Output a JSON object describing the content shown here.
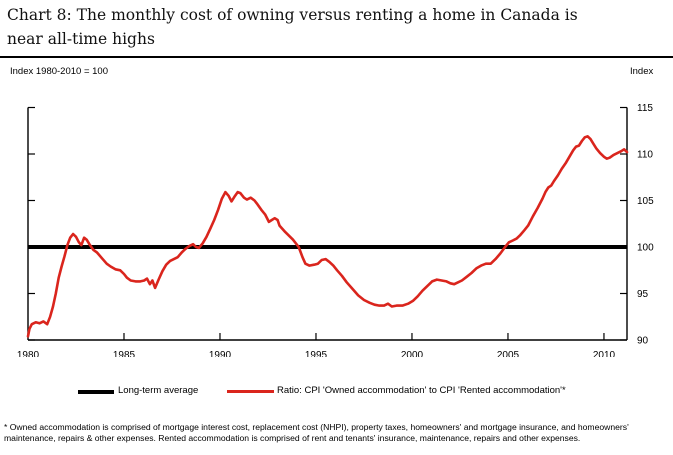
{
  "title_lines": [
    "Chart 8: The monthly cost of owning versus renting a home in Canada is",
    "near all-time highs"
  ],
  "axis_note_left": "Index 1980-2010 = 100",
  "axis_note_right": "Index",
  "legend": {
    "average_label": "Long-term average",
    "ratio_label": "Ratio: CPI 'Owned accommodation' to CPI 'Rented accommodation'*"
  },
  "footnote_lines": [
    "* Owned accommodation is comprised of mortgage interest cost, replacement cost (NHPI), property taxes, homeowners' and mortgage insurance, and homeowners'",
    "maintenance, repairs & other expenses.  Rented accommodation is comprised of rent and tenants' insurance, maintenance, repairs and other expenses."
  ],
  "colors": {
    "ratio_line": "#da251d",
    "average_line": "#000000",
    "axis": "#000000"
  },
  "chart_data": {
    "type": "line",
    "title": "Chart 8: The monthly cost of owning versus renting a home in Canada is near all-time highs",
    "xlabel": "",
    "ylabel": "Index",
    "index_note": "Index 1980-2010 = 100",
    "xlim": [
      1980,
      2011.2
    ],
    "ylim": [
      90,
      115
    ],
    "x_ticks": [
      1980,
      1985,
      1990,
      1995,
      2000,
      2005,
      2010
    ],
    "y_ticks": [
      90,
      95,
      100,
      105,
      110,
      115
    ],
    "grid": false,
    "legend_position": "bottom",
    "long_term_average": 100,
    "series": [
      {
        "name": "Long-term average",
        "color": "#000000",
        "style": "horizontal-line",
        "value": 100
      },
      {
        "name": "Ratio: CPI 'Owned accommodation' to CPI 'Rented accommodation'*",
        "color": "#da251d",
        "style": "line",
        "points": [
          [
            1980.0,
            90.4
          ],
          [
            1980.08,
            91.2
          ],
          [
            1980.2,
            91.7
          ],
          [
            1980.4,
            91.9
          ],
          [
            1980.6,
            91.8
          ],
          [
            1980.8,
            92.0
          ],
          [
            1981.0,
            91.7
          ],
          [
            1981.15,
            92.5
          ],
          [
            1981.3,
            93.6
          ],
          [
            1981.45,
            95.0
          ],
          [
            1981.6,
            96.7
          ],
          [
            1981.75,
            97.9
          ],
          [
            1981.9,
            99.0
          ],
          [
            1982.05,
            100.2
          ],
          [
            1982.2,
            101.0
          ],
          [
            1982.35,
            101.4
          ],
          [
            1982.5,
            101.1
          ],
          [
            1982.65,
            100.5
          ],
          [
            1982.78,
            100.2
          ],
          [
            1982.92,
            101.0
          ],
          [
            1983.05,
            100.8
          ],
          [
            1983.2,
            100.3
          ],
          [
            1983.4,
            99.7
          ],
          [
            1983.6,
            99.4
          ],
          [
            1983.85,
            98.8
          ],
          [
            1984.1,
            98.2
          ],
          [
            1984.3,
            97.9
          ],
          [
            1984.55,
            97.6
          ],
          [
            1984.8,
            97.5
          ],
          [
            1985.0,
            97.1
          ],
          [
            1985.15,
            96.7
          ],
          [
            1985.35,
            96.4
          ],
          [
            1985.6,
            96.3
          ],
          [
            1985.85,
            96.3
          ],
          [
            1986.05,
            96.4
          ],
          [
            1986.2,
            96.6
          ],
          [
            1986.35,
            96.0
          ],
          [
            1986.48,
            96.4
          ],
          [
            1986.62,
            95.6
          ],
          [
            1986.8,
            96.5
          ],
          [
            1987.0,
            97.4
          ],
          [
            1987.2,
            98.1
          ],
          [
            1987.4,
            98.5
          ],
          [
            1987.6,
            98.7
          ],
          [
            1987.8,
            98.9
          ],
          [
            1988.0,
            99.4
          ],
          [
            1988.2,
            99.8
          ],
          [
            1988.4,
            100.1
          ],
          [
            1988.6,
            100.3
          ],
          [
            1988.75,
            100.0
          ],
          [
            1988.9,
            99.9
          ],
          [
            1989.1,
            100.4
          ],
          [
            1989.3,
            101.1
          ],
          [
            1989.5,
            102.0
          ],
          [
            1989.7,
            102.9
          ],
          [
            1989.9,
            104.0
          ],
          [
            1990.1,
            105.2
          ],
          [
            1990.28,
            105.9
          ],
          [
            1990.45,
            105.5
          ],
          [
            1990.6,
            104.9
          ],
          [
            1990.75,
            105.4
          ],
          [
            1990.92,
            105.9
          ],
          [
            1991.06,
            105.8
          ],
          [
            1991.25,
            105.3
          ],
          [
            1991.4,
            105.1
          ],
          [
            1991.6,
            105.3
          ],
          [
            1991.8,
            105.0
          ],
          [
            1991.95,
            104.6
          ],
          [
            1992.15,
            104.0
          ],
          [
            1992.35,
            103.5
          ],
          [
            1992.55,
            102.7
          ],
          [
            1992.7,
            102.9
          ],
          [
            1992.85,
            103.1
          ],
          [
            1993.0,
            102.9
          ],
          [
            1993.1,
            102.3
          ],
          [
            1993.4,
            101.6
          ],
          [
            1993.65,
            101.1
          ],
          [
            1993.8,
            100.8
          ],
          [
            1994.1,
            100.0
          ],
          [
            1994.3,
            98.9
          ],
          [
            1994.45,
            98.2
          ],
          [
            1994.65,
            98.0
          ],
          [
            1994.9,
            98.1
          ],
          [
            1995.1,
            98.2
          ],
          [
            1995.3,
            98.6
          ],
          [
            1995.5,
            98.7
          ],
          [
            1995.7,
            98.4
          ],
          [
            1995.9,
            98.0
          ],
          [
            1996.1,
            97.5
          ],
          [
            1996.35,
            96.9
          ],
          [
            1996.6,
            96.2
          ],
          [
            1996.9,
            95.5
          ],
          [
            1997.2,
            94.8
          ],
          [
            1997.5,
            94.3
          ],
          [
            1997.8,
            94.0
          ],
          [
            1998.05,
            93.8
          ],
          [
            1998.3,
            93.7
          ],
          [
            1998.55,
            93.7
          ],
          [
            1998.75,
            93.9
          ],
          [
            1998.95,
            93.6
          ],
          [
            1999.2,
            93.7
          ],
          [
            1999.5,
            93.7
          ],
          [
            1999.8,
            93.9
          ],
          [
            2000.05,
            94.2
          ],
          [
            2000.3,
            94.7
          ],
          [
            2000.55,
            95.3
          ],
          [
            2000.8,
            95.8
          ],
          [
            2001.05,
            96.3
          ],
          [
            2001.3,
            96.5
          ],
          [
            2001.55,
            96.4
          ],
          [
            2001.8,
            96.3
          ],
          [
            2002.0,
            96.1
          ],
          [
            2002.2,
            96.0
          ],
          [
            2002.4,
            96.2
          ],
          [
            2002.6,
            96.4
          ],
          [
            2002.85,
            96.8
          ],
          [
            2003.1,
            97.2
          ],
          [
            2003.35,
            97.7
          ],
          [
            2003.6,
            98.0
          ],
          [
            2003.85,
            98.2
          ],
          [
            2004.1,
            98.2
          ],
          [
            2004.35,
            98.7
          ],
          [
            2004.6,
            99.3
          ],
          [
            2004.85,
            100.0
          ],
          [
            2005.05,
            100.5
          ],
          [
            2005.25,
            100.7
          ],
          [
            2005.45,
            100.9
          ],
          [
            2005.65,
            101.3
          ],
          [
            2005.85,
            101.8
          ],
          [
            2006.05,
            102.3
          ],
          [
            2006.3,
            103.3
          ],
          [
            2006.55,
            104.2
          ],
          [
            2006.8,
            105.2
          ],
          [
            2006.95,
            105.9
          ],
          [
            2007.1,
            106.4
          ],
          [
            2007.25,
            106.6
          ],
          [
            2007.4,
            107.1
          ],
          [
            2007.6,
            107.7
          ],
          [
            2007.8,
            108.4
          ],
          [
            2008.0,
            109.0
          ],
          [
            2008.2,
            109.7
          ],
          [
            2008.4,
            110.4
          ],
          [
            2008.55,
            110.8
          ],
          [
            2008.7,
            110.9
          ],
          [
            2008.85,
            111.4
          ],
          [
            2009.0,
            111.8
          ],
          [
            2009.15,
            111.9
          ],
          [
            2009.3,
            111.6
          ],
          [
            2009.45,
            111.1
          ],
          [
            2009.6,
            110.6
          ],
          [
            2009.8,
            110.1
          ],
          [
            2010.0,
            109.7
          ],
          [
            2010.15,
            109.5
          ],
          [
            2010.3,
            109.6
          ],
          [
            2010.5,
            109.9
          ],
          [
            2010.7,
            110.1
          ],
          [
            2010.9,
            110.3
          ],
          [
            2011.05,
            110.5
          ],
          [
            2011.2,
            110.2
          ]
        ]
      }
    ]
  }
}
